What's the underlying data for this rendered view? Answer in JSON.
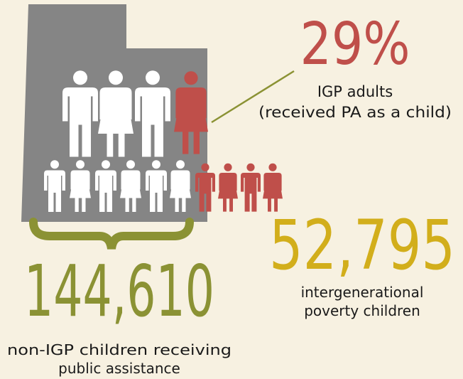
{
  "adults": {
    "value": "29%",
    "label_line1": "IGP adults",
    "label_line2": "(received PA as a child)"
  },
  "igp_children": {
    "value": "52,795",
    "label_line1": "intergenerational",
    "label_line2": "poverty children"
  },
  "non_igp_children": {
    "value": "144,610",
    "label_line1": "non-IGP children receiving",
    "label_line2": "public assistance"
  }
}
